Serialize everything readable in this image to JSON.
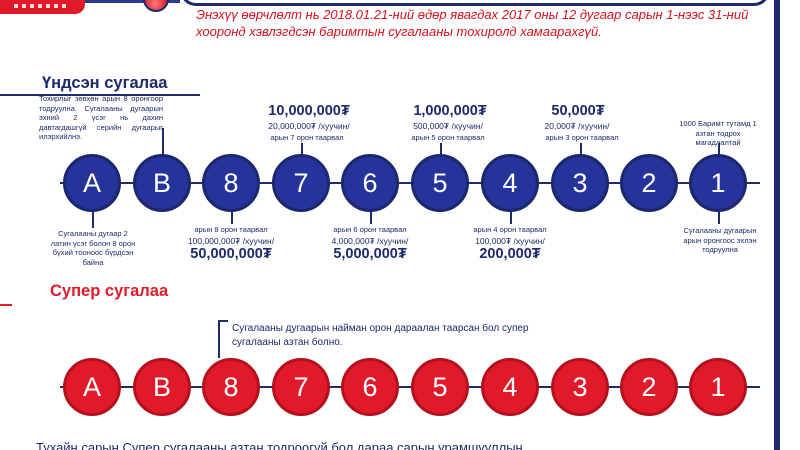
{
  "notice": "Энэхүү өөрчлөлт нь 2018.01.21-ний өдөр явагдах 2017 оны 12 дугаар сарын 1-нээс 31-ний хооронд хэвлэгдсэн баримтын сугалааны тохиролд хамаарахгүй.",
  "main_section": {
    "title": "Үндсэн сугалаа",
    "balls": [
      "A",
      "B",
      "8",
      "7",
      "6",
      "5",
      "4",
      "3",
      "2",
      "1"
    ],
    "note_top_left": "Тохирлыг зөвхөн арын 8 оронгоор тодруулна. Сугалааны дугаарын эхний 2 үсэг нь дахин давтагдашгүй серийн дугаарыг илэрхийлнэ.",
    "note_bottom_left": "Сугалааны дугаар 2 латин үсэг болон 8 орон бүхий тооноос бүрдсэн байна",
    "note_top_right": "1000 Баримт тутамд 1 азтан тодрох магадлалтай",
    "note_bottom_right": "Сугалааны дугаарын арын оронгоос эхлэн тодруулна",
    "prize_7": {
      "amount": "10,000,000₮",
      "per_winner": "20,000,000₮ /хуучин/",
      "match": "арын 7 орон таарвал"
    },
    "prize_5": {
      "amount": "1,000,000₮",
      "per_winner": "500,000₮ /хуучин/",
      "match": "арын 5 орон таарвал"
    },
    "prize_3": {
      "amount": "50,000₮",
      "per_winner": "20,000₮ /хуучин/",
      "match": "арын 3 орон таарвал"
    },
    "prize_8": {
      "match": "арын 8 орон таарвал",
      "per_winner": "100,000,000₮ /хуучин/",
      "amount": "50,000,000₮"
    },
    "prize_6": {
      "match": "арын 6 орон таарвал",
      "per_winner": "4,000,000₮ /хуучин/",
      "amount": "5,000,000₮"
    },
    "prize_4": {
      "match": "арын 4 орон таарвал",
      "per_winner": "100,000₮ /хуучин/",
      "amount": "200,000₮"
    }
  },
  "super_section": {
    "title": "Супер сугалаа",
    "balls": [
      "A",
      "B",
      "8",
      "7",
      "6",
      "5",
      "4",
      "3",
      "2",
      "1"
    ],
    "note": "Сугалааны дугаарын найман орон дараалан таарсан бол супер сугалааны азтан болно."
  },
  "footer": "Тухайн сарын Супер сугалааны азтан тодроогүй бол дараа сарын урамшууллын",
  "colors": {
    "navy": "#1d2a6b",
    "blue_ball": "#24349a",
    "red": "#e01a2a"
  }
}
